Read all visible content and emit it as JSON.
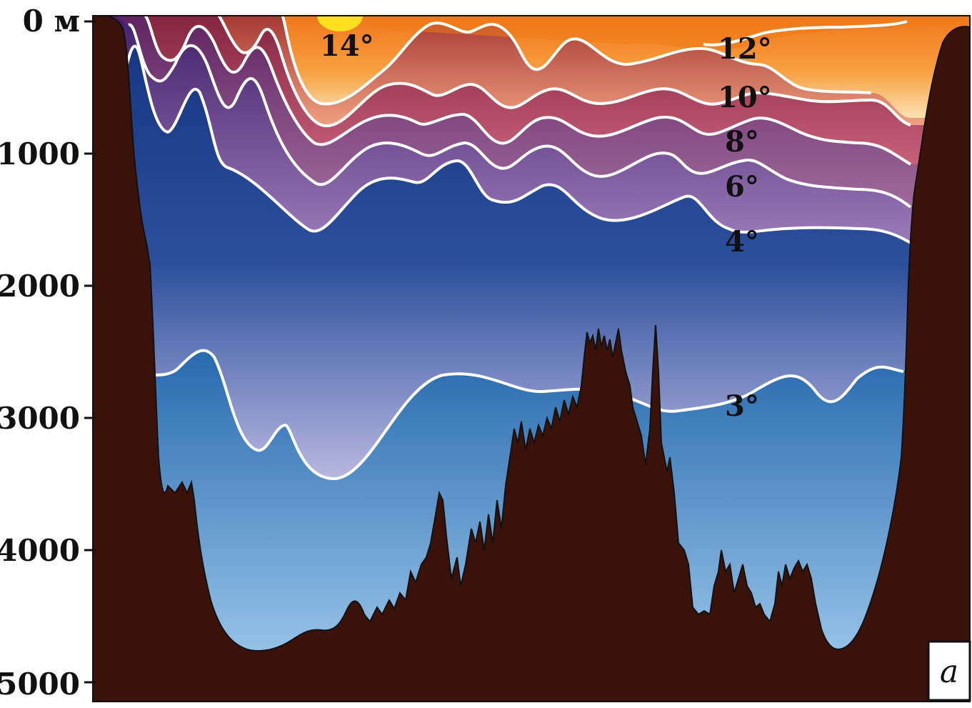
{
  "depth_axis": {
    "ticks": [
      "0 м",
      "1000",
      "2000",
      "3000",
      "4000",
      "5000"
    ]
  },
  "isotherms": [
    "14°",
    "12°",
    "10°",
    "8°",
    "6°",
    "4°",
    "3°"
  ],
  "panel_label": "a",
  "colors": {
    "seabed": "#3a120a",
    "warm_surface": "#f08a1a",
    "deep_water": "#13358c",
    "bottom_water": "#8fbfea",
    "isotherm_line": "#ffffff"
  }
}
